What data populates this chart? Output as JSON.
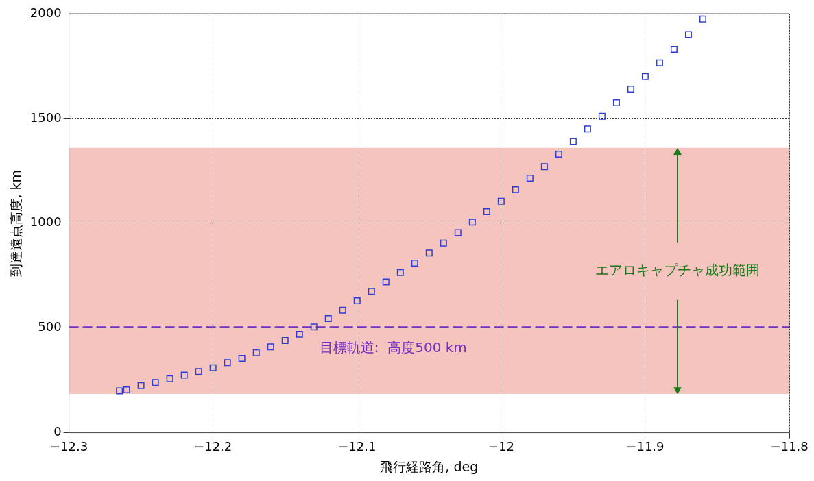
{
  "chart_data": {
    "type": "scatter",
    "xlabel": "飛行経路角, deg",
    "ylabel": "到達遠点高度, km",
    "xlim": [
      -12.3,
      -11.8
    ],
    "xticks": [
      {
        "value": -12.3,
        "label": "−12.3"
      },
      {
        "value": -12.2,
        "label": "−12.2"
      },
      {
        "value": -12.1,
        "label": "−12.1"
      },
      {
        "value": -12,
        "label": "−12"
      },
      {
        "value": -11.9,
        "label": "−11.9"
      },
      {
        "value": -11.8,
        "label": "−11.8"
      }
    ],
    "ylim": [
      0,
      2000
    ],
    "yticks": [
      0,
      500,
      1000,
      1500,
      2000
    ],
    "grid": true,
    "legend": false,
    "marker": "square",
    "series": [
      {
        "color": "#2b3fd6",
        "x": [
          -12.265,
          -12.26,
          -12.25,
          -12.24,
          -12.23,
          -12.22,
          -12.21,
          -12.2,
          -12.19,
          -12.18,
          -12.17,
          -12.16,
          -12.15,
          -12.14,
          -12.13,
          -12.12,
          -12.11,
          -12.1,
          -12.09,
          -12.08,
          -12.07,
          -12.06,
          -12.05,
          -12.04,
          -12.03,
          -12.02,
          -12.01,
          -12.0,
          -11.99,
          -11.98,
          -11.97,
          -11.96,
          -11.95,
          -11.94,
          -11.93,
          -11.92,
          -11.91,
          -11.9,
          -11.89,
          -11.88,
          -11.87,
          -11.86
        ],
        "values": [
          200,
          205,
          225,
          240,
          258,
          275,
          292,
          310,
          335,
          355,
          382,
          410,
          440,
          470,
          505,
          545,
          585,
          630,
          675,
          720,
          765,
          810,
          858,
          905,
          955,
          1005,
          1055,
          1105,
          1160,
          1215,
          1270,
          1330,
          1390,
          1450,
          1510,
          1575,
          1640,
          1700,
          1765,
          1830,
          1900,
          1975
        ]
      }
    ],
    "bands": [
      {
        "axis": "y",
        "from": 185,
        "to": 1360,
        "label": "エアロキャプチャ成功範囲",
        "color": "#f5c4be"
      }
    ],
    "ref_lines": [
      {
        "axis": "y",
        "value": 505,
        "label": "目標軌道:  高度500 km",
        "color": "#7030c0",
        "line_style": "dashed"
      }
    ]
  }
}
